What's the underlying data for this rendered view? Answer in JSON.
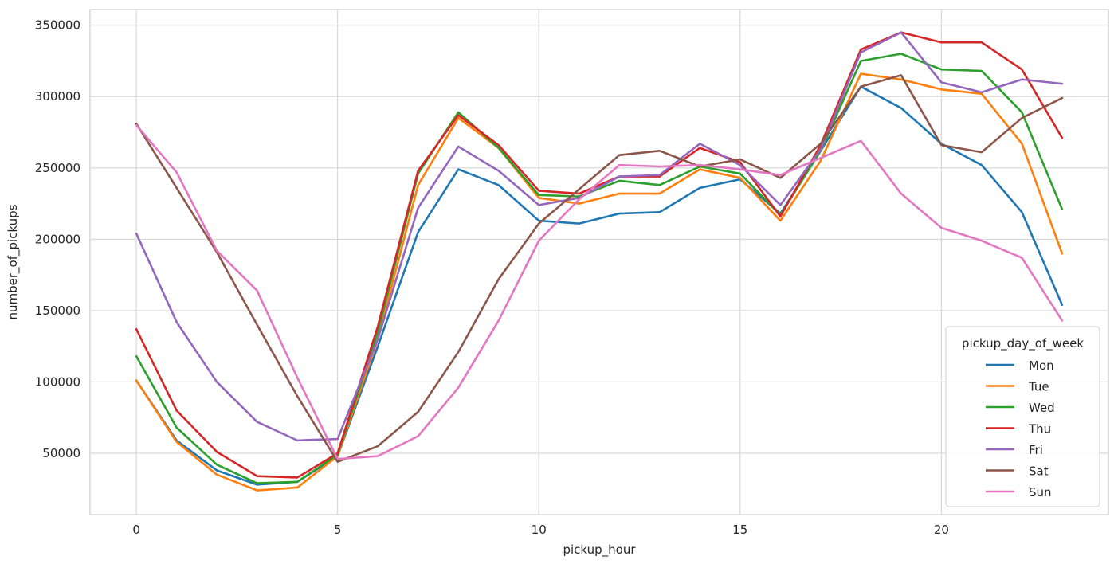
{
  "chart_data": {
    "type": "line",
    "xlabel": "pickup_hour",
    "ylabel": "number_of_pickups",
    "xlim": [
      -1.15,
      24.15
    ],
    "ylim": [
      7000,
      361000
    ],
    "x_ticks": [
      0,
      5,
      10,
      15,
      20
    ],
    "y_ticks": [
      50000,
      100000,
      150000,
      200000,
      250000,
      300000,
      350000
    ],
    "grid": true,
    "legend": {
      "title": "pickup_day_of_week",
      "position": "lower-right"
    },
    "x": [
      0,
      1,
      2,
      3,
      4,
      5,
      6,
      7,
      8,
      9,
      10,
      11,
      12,
      13,
      14,
      15,
      16,
      17,
      18,
      19,
      20,
      21,
      22,
      23
    ],
    "series": [
      {
        "name": "Mon",
        "color": "#1f77b4",
        "values": [
          101000,
          59000,
          38000,
          28000,
          30000,
          48000,
          125000,
          205000,
          249000,
          238000,
          213000,
          211000,
          218000,
          219000,
          236000,
          242000,
          218000,
          262000,
          307000,
          292000,
          267000,
          252000,
          219000,
          154000
        ]
      },
      {
        "name": "Tue",
        "color": "#ff7f0e",
        "values": [
          101000,
          58000,
          35000,
          24000,
          26000,
          48000,
          130000,
          238000,
          285000,
          264000,
          229000,
          225000,
          232000,
          232000,
          249000,
          243000,
          213000,
          255000,
          316000,
          312000,
          305000,
          302000,
          267000,
          190000
        ]
      },
      {
        "name": "Wed",
        "color": "#2ca02c",
        "values": [
          118000,
          68000,
          42000,
          29000,
          30000,
          49000,
          135000,
          246000,
          289000,
          264000,
          231000,
          230000,
          241000,
          238000,
          251000,
          246000,
          217000,
          262000,
          325000,
          330000,
          319000,
          318000,
          289000,
          221000
        ]
      },
      {
        "name": "Thu",
        "color": "#d62728",
        "values": [
          137000,
          80000,
          51000,
          34000,
          33000,
          50000,
          139000,
          248000,
          287000,
          266000,
          234000,
          232000,
          244000,
          244000,
          264000,
          254000,
          216000,
          266000,
          333000,
          345000,
          338000,
          338000,
          319000,
          271000
        ]
      },
      {
        "name": "Fri",
        "color": "#9467bd",
        "values": [
          204000,
          142000,
          100000,
          72000,
          59000,
          60000,
          130000,
          222000,
          265000,
          248000,
          224000,
          229000,
          244000,
          245000,
          267000,
          252000,
          224000,
          263000,
          331000,
          345000,
          310000,
          303000,
          312000,
          309000
        ]
      },
      {
        "name": "Sat",
        "color": "#8c564b",
        "values": [
          281000,
          236000,
          191000,
          140000,
          90000,
          44000,
          55000,
          79000,
          121000,
          172000,
          211000,
          235000,
          259000,
          262000,
          251000,
          256000,
          243000,
          267000,
          307000,
          315000,
          266000,
          261000,
          285000,
          299000
        ]
      },
      {
        "name": "Sun",
        "color": "#e377c2",
        "values": [
          280000,
          247000,
          192000,
          164000,
          103000,
          46000,
          48000,
          62000,
          96000,
          143000,
          199000,
          228000,
          252000,
          251000,
          252000,
          249000,
          245000,
          257000,
          269000,
          232000,
          208000,
          199000,
          187000,
          143000
        ]
      }
    ]
  }
}
